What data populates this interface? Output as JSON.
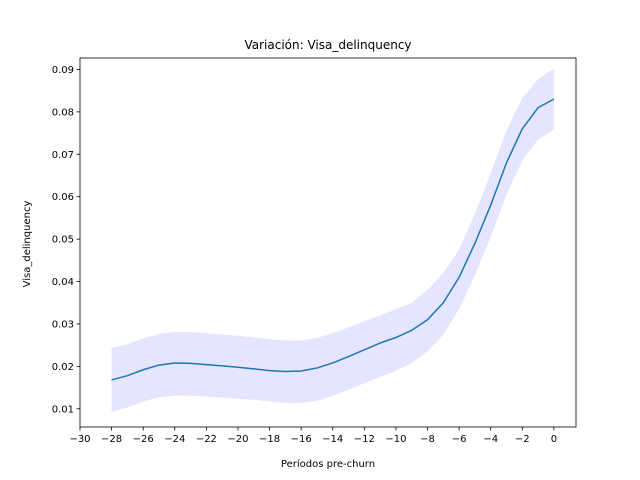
{
  "chart_data": {
    "type": "line",
    "title": "Variación: Visa_delinquency",
    "xlabel": "Períodos pre-churn",
    "ylabel": "Visa_delinquency",
    "xlim": [
      -30,
      1.4
    ],
    "ylim": [
      0.0057,
      0.0927
    ],
    "xticks": [
      -30,
      -28,
      -26,
      -24,
      -22,
      -20,
      -18,
      -16,
      -14,
      -12,
      -10,
      -8,
      -6,
      -4,
      -2,
      0
    ],
    "xtick_labels": [
      "−30",
      "−28",
      "−26",
      "−24",
      "−22",
      "−20",
      "−18",
      "−16",
      "−14",
      "−12",
      "−10",
      "−8",
      "−6",
      "−4",
      "−2",
      "0"
    ],
    "yticks": [
      0.01,
      0.02,
      0.03,
      0.04,
      0.05,
      0.06,
      0.07,
      0.08,
      0.09
    ],
    "ytick_labels": [
      "0.01",
      "0.02",
      "0.03",
      "0.04",
      "0.05",
      "0.06",
      "0.07",
      "0.08",
      "0.09"
    ],
    "grid": false,
    "legend": false,
    "colors": {
      "line": "#1f77b4",
      "band": "#0000ff"
    },
    "series": [
      {
        "x": [
          -28,
          -27,
          -26,
          -25,
          -24,
          -23,
          -22,
          -21,
          -20,
          -19,
          -18,
          -17,
          -16,
          -15,
          -14,
          -13,
          -12,
          -11,
          -10,
          -9,
          -8,
          -7,
          -6,
          -5,
          -4,
          -3,
          -2,
          -1,
          0
        ],
        "y": [
          0.0168,
          0.0178,
          0.0192,
          0.0203,
          0.0208,
          0.0207,
          0.0204,
          0.0201,
          0.0198,
          0.0194,
          0.019,
          0.0188,
          0.0189,
          0.0196,
          0.0208,
          0.0223,
          0.0239,
          0.0255,
          0.0268,
          0.0285,
          0.031,
          0.035,
          0.041,
          0.049,
          0.058,
          0.068,
          0.076,
          0.081,
          0.083
        ],
        "lower": [
          0.0093,
          0.0103,
          0.0117,
          0.0127,
          0.0131,
          0.0131,
          0.0129,
          0.0126,
          0.0124,
          0.0121,
          0.0117,
          0.0114,
          0.0114,
          0.0119,
          0.0131,
          0.0145,
          0.016,
          0.0175,
          0.019,
          0.0208,
          0.0235,
          0.0275,
          0.0335,
          0.0415,
          0.0505,
          0.0605,
          0.0685,
          0.0735,
          0.0758
        ],
        "upper": [
          0.0243,
          0.0252,
          0.0266,
          0.0277,
          0.0281,
          0.0281,
          0.0278,
          0.0275,
          0.0272,
          0.0268,
          0.0264,
          0.0261,
          0.0261,
          0.0267,
          0.0278,
          0.0292,
          0.0306,
          0.032,
          0.0335,
          0.035,
          0.038,
          0.042,
          0.0475,
          0.056,
          0.0655,
          0.0755,
          0.0833,
          0.0877,
          0.0902
        ]
      }
    ]
  }
}
